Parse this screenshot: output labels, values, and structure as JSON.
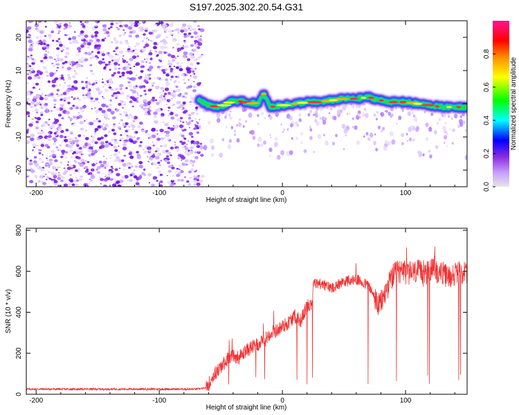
{
  "title": "S197.2025.302.20.54.G31",
  "chart_data": [
    {
      "type": "heatmap",
      "name": "spectrogram",
      "xlabel": "Height of straight line (km)",
      "ylabel": "Frequency (Hz)",
      "xlim": [
        -208,
        150
      ],
      "ylim": [
        -25,
        25
      ],
      "xticks": [
        -200,
        -100,
        0,
        100
      ],
      "yticks": [
        20,
        10,
        0,
        -10,
        -20
      ],
      "colorbar": {
        "label": "Normalized spectral amplitude",
        "range": [
          0,
          1
        ],
        "ticks": [
          "0.0",
          "0.2",
          "0.4",
          "0.6",
          "0.8"
        ],
        "colormap": [
          "#e6e6e6",
          "#c9a3ff",
          "#8a2be2",
          "#0000ff",
          "#00ffff",
          "#00ff00",
          "#ffff00",
          "#ff8c00",
          "#ff0000",
          "#ff1493"
        ]
      },
      "noise_region_km": [
        -208,
        -68
      ],
      "signal_track": [
        {
          "x": -68,
          "f": 1.5
        },
        {
          "x": -60,
          "f": -0.5
        },
        {
          "x": -50,
          "f": -1.0
        },
        {
          "x": -40,
          "f": 1.0
        },
        {
          "x": -30,
          "f": 0.5
        },
        {
          "x": -20,
          "f": 0.0
        },
        {
          "x": -15,
          "f": 3.0
        },
        {
          "x": -10,
          "f": -1.0
        },
        {
          "x": 0,
          "f": -0.5
        },
        {
          "x": 10,
          "f": 0.0
        },
        {
          "x": 20,
          "f": 0.5
        },
        {
          "x": 30,
          "f": 0.5
        },
        {
          "x": 40,
          "f": 1.0
        },
        {
          "x": 50,
          "f": 1.5
        },
        {
          "x": 60,
          "f": 1.5
        },
        {
          "x": 70,
          "f": 2.0
        },
        {
          "x": 80,
          "f": 1.0
        },
        {
          "x": 90,
          "f": 0.5
        },
        {
          "x": 100,
          "f": 0.5
        },
        {
          "x": 110,
          "f": 0.0
        },
        {
          "x": 120,
          "f": -0.5
        },
        {
          "x": 130,
          "f": -1.0
        },
        {
          "x": 140,
          "f": -1.0
        },
        {
          "x": 150,
          "f": -1.0
        }
      ]
    },
    {
      "type": "line",
      "name": "snr",
      "xlabel": "Height of straight line (km)",
      "ylabel": "SNR (10 * v/v)",
      "xlim": [
        -208,
        150
      ],
      "ylim": [
        0,
        810
      ],
      "xticks": [
        -200,
        -100,
        0,
        100
      ],
      "yticks": [
        0,
        200,
        400,
        600,
        800
      ],
      "color": "#f03232",
      "x": [
        -208,
        -150,
        -100,
        -70,
        -62,
        -55,
        -50,
        -45,
        -40,
        -35,
        -30,
        -25,
        -20,
        -15,
        -10,
        -5,
        0,
        5,
        10,
        15,
        20,
        24,
        25,
        30,
        40,
        50,
        60,
        70,
        75,
        78,
        82,
        85,
        90,
        95,
        100,
        105,
        110,
        115,
        120,
        125,
        130,
        135,
        140,
        145,
        150
      ],
      "y": [
        25,
        25,
        25,
        25,
        30,
        100,
        130,
        170,
        190,
        180,
        210,
        230,
        240,
        260,
        300,
        310,
        330,
        350,
        380,
        360,
        430,
        450,
        540,
        540,
        520,
        550,
        560,
        530,
        470,
        430,
        470,
        520,
        580,
        600,
        590,
        590,
        600,
        580,
        610,
        600,
        590,
        570,
        590,
        590,
        600
      ]
    }
  ]
}
